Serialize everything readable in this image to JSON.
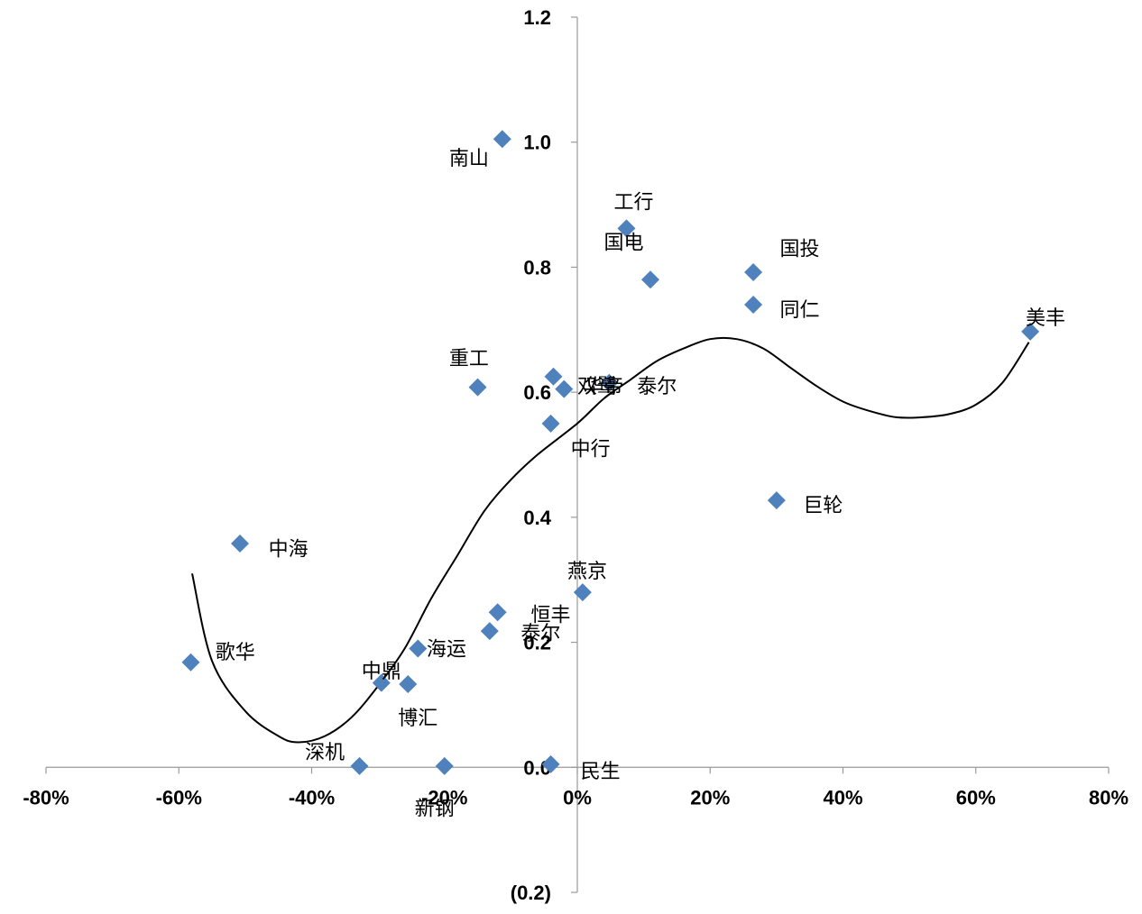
{
  "chart_data": {
    "type": "scatter",
    "title": "",
    "xlabel": "",
    "ylabel": "",
    "xlim": [
      -0.8,
      0.8
    ],
    "ylim": [
      -0.2,
      1.2
    ],
    "x_ticks": [
      {
        "value": -0.8,
        "label": "-80%"
      },
      {
        "value": -0.6,
        "label": "-60%"
      },
      {
        "value": -0.4,
        "label": "-40%"
      },
      {
        "value": -0.2,
        "label": "-20%"
      },
      {
        "value": 0.0,
        "label": "0%"
      },
      {
        "value": 0.2,
        "label": "20%"
      },
      {
        "value": 0.4,
        "label": "40%"
      },
      {
        "value": 0.6,
        "label": "60%"
      },
      {
        "value": 0.8,
        "label": "80%"
      }
    ],
    "y_ticks": [
      {
        "value": 1.2,
        "label": "1.2"
      },
      {
        "value": 1.0,
        "label": "1.0"
      },
      {
        "value": 0.8,
        "label": "0.8"
      },
      {
        "value": 0.6,
        "label": "0.6"
      },
      {
        "value": 0.4,
        "label": "0.4"
      },
      {
        "value": 0.2,
        "label": "0.2"
      },
      {
        "value": 0.0,
        "label": "0.0"
      },
      {
        "value": -0.2,
        "label": "(0.2)",
        "color": "#ff0000"
      }
    ],
    "marker_color": "#4f81bd",
    "trendline": {
      "type": "polynomial",
      "color": "#000000",
      "points": [
        [
          -0.58,
          0.31
        ],
        [
          -0.55,
          0.17
        ],
        [
          -0.5,
          0.09
        ],
        [
          -0.45,
          0.05
        ],
        [
          -0.42,
          0.04
        ],
        [
          -0.38,
          0.05
        ],
        [
          -0.34,
          0.08
        ],
        [
          -0.3,
          0.13
        ],
        [
          -0.26,
          0.19
        ],
        [
          -0.22,
          0.27
        ],
        [
          -0.18,
          0.34
        ],
        [
          -0.14,
          0.41
        ],
        [
          -0.1,
          0.46
        ],
        [
          -0.06,
          0.5
        ],
        [
          0.0,
          0.55
        ],
        [
          0.04,
          0.59
        ],
        [
          0.08,
          0.62
        ],
        [
          0.12,
          0.65
        ],
        [
          0.16,
          0.67
        ],
        [
          0.2,
          0.685
        ],
        [
          0.24,
          0.685
        ],
        [
          0.28,
          0.67
        ],
        [
          0.32,
          0.64
        ],
        [
          0.36,
          0.61
        ],
        [
          0.4,
          0.585
        ],
        [
          0.44,
          0.57
        ],
        [
          0.48,
          0.56
        ],
        [
          0.52,
          0.56
        ],
        [
          0.56,
          0.565
        ],
        [
          0.6,
          0.58
        ],
        [
          0.64,
          0.615
        ],
        [
          0.68,
          0.68
        ]
      ]
    },
    "points": [
      {
        "label": "南山",
        "x": -0.113,
        "y": 1.005,
        "lx": -0.193,
        "ly": 0.975
      },
      {
        "label": "工行",
        "x": 0.074,
        "y": 0.862,
        "lx": 0.055,
        "ly": 0.905
      },
      {
        "label": "国电",
        "x": 0.11,
        "y": 0.78,
        "lx": 0.04,
        "ly": 0.84
      },
      {
        "label": "国投",
        "x": 0.265,
        "y": 0.792,
        "lx": 0.305,
        "ly": 0.83
      },
      {
        "label": "同仁",
        "x": 0.265,
        "y": 0.74,
        "lx": 0.305,
        "ly": 0.733
      },
      {
        "label": "美丰",
        "x": 0.682,
        "y": 0.697,
        "lx": 0.675,
        "ly": 0.72
      },
      {
        "label": "重工",
        "x": -0.15,
        "y": 0.608,
        "lx": -0.193,
        "ly": 0.655
      },
      {
        "label": "双鹭",
        "x": -0.036,
        "y": 0.625,
        "lx": 0.0,
        "ly": 0.61
      },
      {
        "label": "华帝",
        "x": -0.02,
        "y": 0.605,
        "lx": 0.01,
        "ly": 0.61
      },
      {
        "label": "泰尔",
        "x": 0.048,
        "y": 0.615,
        "lx": 0.09,
        "ly": 0.61
      },
      {
        "label": "中行",
        "x": -0.04,
        "y": 0.55,
        "lx": -0.01,
        "ly": 0.51
      },
      {
        "label": "巨轮",
        "x": 0.3,
        "y": 0.427,
        "lx": 0.34,
        "ly": 0.42
      },
      {
        "label": "中海",
        "x": -0.508,
        "y": 0.358,
        "lx": -0.465,
        "ly": 0.35
      },
      {
        "label": "燕京",
        "x": 0.008,
        "y": 0.28,
        "lx": -0.015,
        "ly": 0.315
      },
      {
        "label": "恒丰",
        "x": -0.12,
        "y": 0.248,
        "lx": -0.07,
        "ly": 0.245
      },
      {
        "label": "泰尔",
        "x": -0.132,
        "y": 0.218,
        "lx": -0.085,
        "ly": 0.215
      },
      {
        "label": "海运",
        "x": -0.24,
        "y": 0.19,
        "lx": -0.227,
        "ly": 0.19
      },
      {
        "label": "歌华",
        "x": -0.582,
        "y": 0.168,
        "lx": -0.545,
        "ly": 0.185
      },
      {
        "label": "中鼎",
        "x": -0.295,
        "y": 0.135,
        "lx": -0.325,
        "ly": 0.155
      },
      {
        "label": "博汇",
        "x": -0.255,
        "y": 0.133,
        "lx": -0.27,
        "ly": 0.08
      },
      {
        "label": "深机",
        "x": -0.328,
        "y": 0.002,
        "lx": -0.41,
        "ly": 0.025
      },
      {
        "label": "新钢",
        "x": -0.2,
        "y": 0.002,
        "lx": -0.245,
        "ly": -0.065
      },
      {
        "label": "民生",
        "x": -0.04,
        "y": 0.005,
        "lx": 0.005,
        "ly": -0.005
      }
    ]
  }
}
